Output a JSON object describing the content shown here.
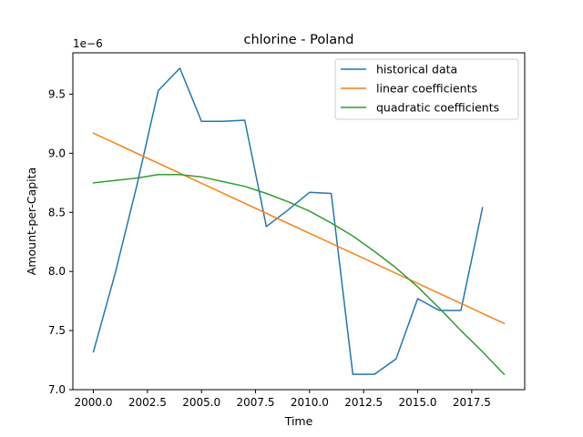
{
  "chart_data": {
    "type": "line",
    "title": "chlorine - Poland",
    "xlabel": "Time",
    "ylabel": "Amount-per-Capita",
    "y_scale_label": "1e−6",
    "xlim": [
      1999.05,
      2019.95
    ],
    "ylim": [
      7.0,
      9.85
    ],
    "x_ticks": [
      2000.0,
      2002.5,
      2005.0,
      2007.5,
      2010.0,
      2012.5,
      2015.0,
      2017.5
    ],
    "x_tick_labels": [
      "2000.0",
      "2002.5",
      "2005.0",
      "2007.5",
      "2010.0",
      "2012.5",
      "2015.0",
      "2017.5"
    ],
    "y_ticks": [
      7.0,
      7.5,
      8.0,
      8.5,
      9.0,
      9.5
    ],
    "y_tick_labels": [
      "7.0",
      "7.5",
      "8.0",
      "8.5",
      "9.0",
      "9.5"
    ],
    "grid": false,
    "legend_position": "top-right",
    "series": [
      {
        "name": "historical data",
        "color": "#1f77b4",
        "x": [
          2000,
          2001,
          2002,
          2003,
          2004,
          2005,
          2006,
          2007,
          2008,
          2009,
          2010,
          2011,
          2012,
          2013,
          2014,
          2015,
          2016,
          2017,
          2018
        ],
        "y": [
          7.32,
          7.98,
          8.72,
          9.53,
          9.72,
          9.27,
          9.27,
          9.28,
          8.38,
          8.52,
          8.67,
          8.66,
          7.13,
          7.13,
          7.26,
          7.77,
          7.67,
          7.67,
          8.54
        ]
      },
      {
        "name": "linear coefficients",
        "color": "#ff7f0e",
        "x": [
          2000,
          2019
        ],
        "y": [
          9.17,
          7.56
        ]
      },
      {
        "name": "quadratic coefficients",
        "color": "#2ca02c",
        "x": [
          2000,
          2001,
          2002,
          2003,
          2004,
          2005,
          2006,
          2007,
          2008,
          2009,
          2010,
          2011,
          2012,
          2013,
          2014,
          2015,
          2016,
          2017,
          2018,
          2019
        ],
        "y": [
          8.75,
          8.77,
          8.79,
          8.82,
          8.82,
          8.8,
          8.76,
          8.72,
          8.66,
          8.59,
          8.51,
          8.41,
          8.3,
          8.17,
          8.03,
          7.87,
          7.69,
          7.5,
          7.32,
          7.13
        ]
      }
    ]
  }
}
